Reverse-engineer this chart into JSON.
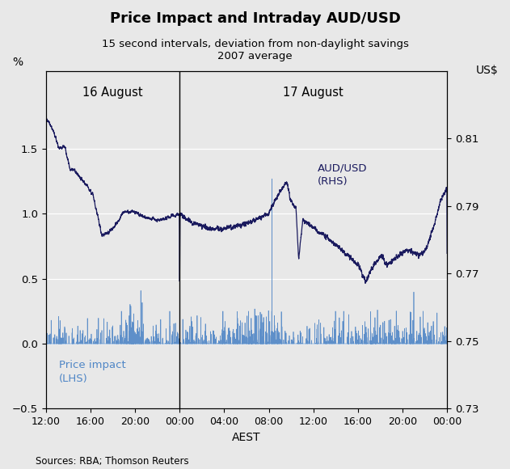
{
  "title": "Price Impact and Intraday AUD/USD",
  "subtitle": "15 second intervals, deviation from non-daylight savings\n2007 average",
  "xlabel": "AEST",
  "ylabel_left": "%",
  "ylabel_right": "US$",
  "label_aug16": "16 August",
  "label_aug17": "17 August",
  "legend_aud": "AUD/USD\n(RHS)",
  "legend_pi": "Price impact\n(LHS)",
  "source": "Sources: RBA; Thomson Reuters",
  "ylim_left": [
    -0.5,
    2.1
  ],
  "ylim_right": [
    0.73,
    0.83
  ],
  "yticks_left": [
    -0.5,
    0.0,
    0.5,
    1.0,
    1.5
  ],
  "yticks_right": [
    0.73,
    0.75,
    0.77,
    0.79,
    0.81
  ],
  "xtick_labels": [
    "12:00",
    "16:00",
    "20:00",
    "00:00",
    "04:00",
    "08:00",
    "12:00",
    "16:00",
    "20:00",
    "00:00"
  ],
  "color_aud": "#1a1a5e",
  "color_pi": "#4f86c6",
  "color_divider": "#1a1a5e",
  "background_color": "#e8e8e8"
}
